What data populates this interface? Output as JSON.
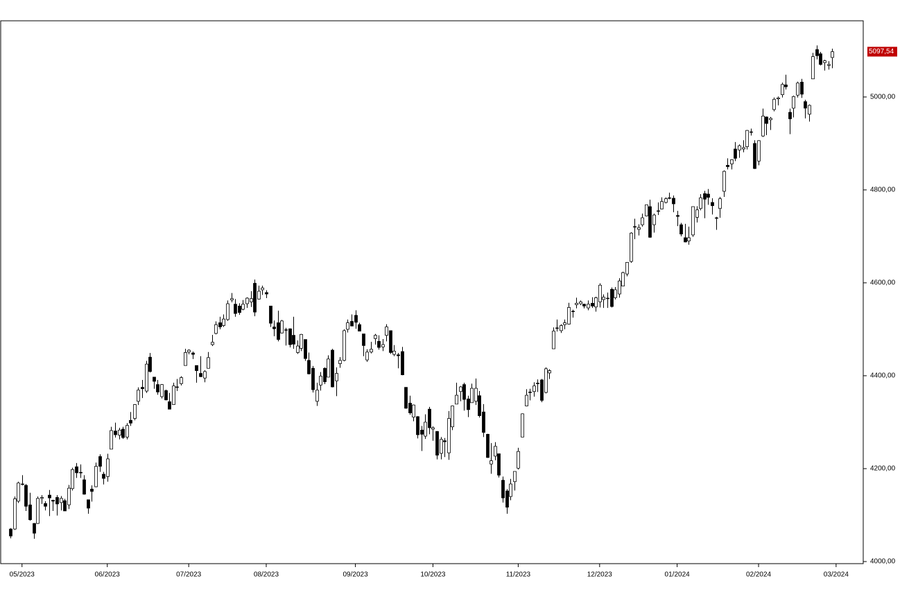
{
  "chart_data": {
    "type": "candlestick",
    "ohlc": [
      [
        4070,
        4072,
        4050,
        4055
      ],
      [
        4070,
        4140,
        4068,
        4135
      ],
      [
        4130,
        4172,
        4126,
        4169
      ],
      [
        4166,
        4186,
        4164,
        4167
      ],
      [
        4164,
        4167,
        4109,
        4119
      ],
      [
        4122,
        4148,
        4088,
        4090
      ],
      [
        4082,
        4083,
        4049,
        4061
      ],
      [
        4082,
        4140,
        4081,
        4136
      ],
      [
        4136,
        4143,
        4124,
        4138
      ],
      [
        4125,
        4130,
        4110,
        4119
      ],
      [
        4143,
        4154,
        4098,
        4137
      ],
      [
        4132,
        4133,
        4109,
        4130
      ],
      [
        4138,
        4143,
        4099,
        4124
      ],
      [
        4127,
        4141,
        4110,
        4136
      ],
      [
        4131,
        4135,
        4109,
        4109
      ],
      [
        4122,
        4165,
        4113,
        4158
      ],
      [
        4157,
        4202,
        4153,
        4198
      ],
      [
        4204,
        4212,
        4180,
        4191
      ],
      [
        4191,
        4209,
        4180,
        4192
      ],
      [
        4176,
        4186,
        4144,
        4145
      ],
      [
        4133,
        4133,
        4103,
        4115
      ],
      [
        4156,
        4164,
        4129,
        4151
      ],
      [
        4161,
        4213,
        4160,
        4205
      ],
      [
        4226,
        4231,
        4193,
        4205
      ],
      [
        4188,
        4193,
        4166,
        4179
      ],
      [
        4183,
        4232,
        4172,
        4221
      ],
      [
        4242,
        4290,
        4242,
        4282
      ],
      [
        4281,
        4299,
        4267,
        4273
      ],
      [
        4272,
        4288,
        4263,
        4283
      ],
      [
        4285,
        4290,
        4264,
        4267
      ],
      [
        4268,
        4298,
        4263,
        4293
      ],
      [
        4304,
        4322,
        4292,
        4298
      ],
      [
        4308,
        4339,
        4304,
        4338
      ],
      [
        4345,
        4375,
        4337,
        4369
      ],
      [
        4375,
        4391,
        4352,
        4372
      ],
      [
        4367,
        4432,
        4363,
        4425
      ],
      [
        4440,
        4449,
        4407,
        4409
      ],
      [
        4397,
        4397,
        4372,
        4388
      ],
      [
        4381,
        4391,
        4359,
        4365
      ],
      [
        4355,
        4382,
        4351,
        4381
      ],
      [
        4368,
        4370,
        4347,
        4348
      ],
      [
        4344,
        4363,
        4328,
        4328
      ],
      [
        4338,
        4385,
        4338,
        4378
      ],
      [
        4375,
        4393,
        4367,
        4376
      ],
      [
        4383,
        4399,
        4379,
        4396
      ],
      [
        4422,
        4458,
        4422,
        4450
      ],
      [
        4451,
        4457,
        4446,
        4455
      ],
      [
        4449,
        4452,
        4436,
        4446
      ],
      [
        4422,
        4422,
        4385,
        4411
      ],
      [
        4405,
        4442,
        4397,
        4398
      ],
      [
        4395,
        4412,
        4386,
        4409
      ],
      [
        4416,
        4451,
        4416,
        4439
      ],
      [
        4467,
        4488,
        4464,
        4472
      ],
      [
        4491,
        4517,
        4489,
        4510
      ],
      [
        4514,
        4527,
        4500,
        4505
      ],
      [
        4508,
        4532,
        4505,
        4522
      ],
      [
        4521,
        4562,
        4518,
        4555
      ],
      [
        4563,
        4578,
        4558,
        4566
      ],
      [
        4554,
        4565,
        4527,
        4534
      ],
      [
        4550,
        4556,
        4531,
        4536
      ],
      [
        4543,
        4563,
        4541,
        4554
      ],
      [
        4555,
        4569,
        4546,
        4567
      ],
      [
        4559,
        4582,
        4548,
        4566
      ],
      [
        4599,
        4607,
        4528,
        4537
      ],
      [
        4565,
        4594,
        4564,
        4582
      ],
      [
        4585,
        4594,
        4574,
        4589
      ],
      [
        4579,
        4584,
        4567,
        4576
      ],
      [
        4550,
        4550,
        4505,
        4513
      ],
      [
        4505,
        4519,
        4485,
        4501
      ],
      [
        4514,
        4540,
        4474,
        4478
      ],
      [
        4492,
        4520,
        4491,
        4518
      ],
      [
        4498,
        4503,
        4465,
        4499
      ],
      [
        4501,
        4502,
        4461,
        4467
      ],
      [
        4487,
        4527,
        4458,
        4468
      ],
      [
        4450,
        4476,
        4447,
        4464
      ],
      [
        4459,
        4490,
        4453,
        4489
      ],
      [
        4478,
        4478,
        4432,
        4437
      ],
      [
        4433,
        4450,
        4403,
        4404
      ],
      [
        4416,
        4421,
        4364,
        4370
      ],
      [
        4345,
        4385,
        4335,
        4369
      ],
      [
        4380,
        4408,
        4368,
        4399
      ],
      [
        4416,
        4418,
        4382,
        4387
      ],
      [
        4397,
        4444,
        4397,
        4436
      ],
      [
        4455,
        4458,
        4375,
        4376
      ],
      [
        4389,
        4418,
        4356,
        4405
      ],
      [
        4426,
        4440,
        4417,
        4433
      ],
      [
        4433,
        4500,
        4431,
        4497
      ],
      [
        4500,
        4521,
        4493,
        4514
      ],
      [
        4517,
        4532,
        4507,
        4507
      ],
      [
        4530,
        4541,
        4501,
        4515
      ],
      [
        4510,
        4514,
        4496,
        4496
      ],
      [
        4490,
        4490,
        4442,
        4465
      ],
      [
        4434,
        4457,
        4430,
        4451
      ],
      [
        4451,
        4473,
        4448,
        4457
      ],
      [
        4480,
        4490,
        4467,
        4487
      ],
      [
        4474,
        4487,
        4456,
        4461
      ],
      [
        4462,
        4479,
        4453,
        4467
      ],
      [
        4487,
        4511,
        4474,
        4505
      ],
      [
        4497,
        4497,
        4447,
        4450
      ],
      [
        4446,
        4466,
        4442,
        4453
      ],
      [
        4445,
        4449,
        4416,
        4443
      ],
      [
        4452,
        4462,
        4401,
        4402
      ],
      [
        4375,
        4375,
        4329,
        4330
      ],
      [
        4341,
        4357,
        4316,
        4320
      ],
      [
        4311,
        4338,
        4302,
        4337
      ],
      [
        4312,
        4313,
        4265,
        4273
      ],
      [
        4283,
        4292,
        4238,
        4274
      ],
      [
        4270,
        4317,
        4264,
        4300
      ],
      [
        4328,
        4333,
        4274,
        4288
      ],
      [
        4285,
        4291,
        4260,
        4288
      ],
      [
        4280,
        4281,
        4220,
        4229
      ],
      [
        4233,
        4268,
        4220,
        4263
      ],
      [
        4260,
        4266,
        4225,
        4258
      ],
      [
        4234,
        4324,
        4219,
        4308
      ],
      [
        4290,
        4336,
        4283,
        4335
      ],
      [
        4339,
        4385,
        4339,
        4358
      ],
      [
        4366,
        4378,
        4345,
        4376
      ],
      [
        4381,
        4385,
        4325,
        4349
      ],
      [
        4350,
        4357,
        4311,
        4327
      ],
      [
        4342,
        4383,
        4342,
        4373
      ],
      [
        4345,
        4394,
        4337,
        4373
      ],
      [
        4357,
        4367,
        4310,
        4314
      ],
      [
        4322,
        4339,
        4268,
        4278
      ],
      [
        4274,
        4275,
        4223,
        4224
      ],
      [
        4210,
        4255,
        4189,
        4217
      ],
      [
        4227,
        4257,
        4218,
        4248
      ],
      [
        4232,
        4232,
        4181,
        4186
      ],
      [
        4175,
        4183,
        4127,
        4137
      ],
      [
        4152,
        4156,
        4103,
        4117
      ],
      [
        4140,
        4178,
        4132,
        4167
      ],
      [
        4172,
        4194,
        4153,
        4194
      ],
      [
        4201,
        4245,
        4198,
        4237
      ],
      [
        4268,
        4319,
        4268,
        4318
      ],
      [
        4335,
        4371,
        4334,
        4358
      ],
      [
        4364,
        4372,
        4347,
        4365
      ],
      [
        4366,
        4386,
        4355,
        4378
      ],
      [
        4384,
        4392,
        4365,
        4383
      ],
      [
        4391,
        4393,
        4343,
        4347
      ],
      [
        4364,
        4418,
        4362,
        4415
      ],
      [
        4406,
        4414,
        4393,
        4411
      ],
      [
        4458,
        4504,
        4458,
        4496
      ],
      [
        4503,
        4521,
        4495,
        4502
      ],
      [
        4497,
        4511,
        4492,
        4508
      ],
      [
        4510,
        4521,
        4500,
        4514
      ],
      [
        4511,
        4557,
        4510,
        4547
      ],
      [
        4539,
        4542,
        4525,
        4538
      ],
      [
        4553,
        4568,
        4545,
        4556
      ],
      [
        4555,
        4562,
        4552,
        4559
      ],
      [
        4554,
        4555,
        4545,
        4550
      ],
      [
        4546,
        4562,
        4541,
        4554
      ],
      [
        4556,
        4569,
        4546,
        4550
      ],
      [
        4548,
        4570,
        4538,
        4568
      ],
      [
        4559,
        4599,
        4547,
        4595
      ],
      [
        4564,
        4575,
        4546,
        4569
      ],
      [
        4566,
        4579,
        4546,
        4567
      ],
      [
        4586,
        4590,
        4547,
        4549
      ],
      [
        4568,
        4591,
        4564,
        4585
      ],
      [
        4576,
        4610,
        4568,
        4604
      ],
      [
        4593,
        4624,
        4593,
        4622
      ],
      [
        4619,
        4644,
        4614,
        4644
      ],
      [
        4646,
        4709,
        4643,
        4707
      ],
      [
        4721,
        4738,
        4694,
        4720
      ],
      [
        4715,
        4726,
        4702,
        4719
      ],
      [
        4725,
        4749,
        4721,
        4740
      ],
      [
        4744,
        4768,
        4743,
        4768
      ],
      [
        4764,
        4779,
        4697,
        4698
      ],
      [
        4725,
        4749,
        4708,
        4746
      ],
      [
        4754,
        4773,
        4746,
        4755
      ],
      [
        4759,
        4784,
        4758,
        4775
      ],
      [
        4773,
        4784,
        4771,
        4781
      ],
      [
        4783,
        4794,
        4780,
        4783
      ],
      [
        4782,
        4788,
        4752,
        4770
      ],
      [
        4745,
        4755,
        4722,
        4743
      ],
      [
        4725,
        4729,
        4700,
        4705
      ],
      [
        4697,
        4727,
        4687,
        4688
      ],
      [
        4690,
        4721,
        4682,
        4697
      ],
      [
        4703,
        4764,
        4699,
        4764
      ],
      [
        4741,
        4765,
        4730,
        4757
      ],
      [
        4760,
        4791,
        4756,
        4783
      ],
      [
        4792,
        4798,
        4739,
        4780
      ],
      [
        4791,
        4802,
        4768,
        4784
      ],
      [
        4773,
        4782,
        4747,
        4766
      ],
      [
        4740,
        4742,
        4714,
        4739
      ],
      [
        4760,
        4785,
        4740,
        4781
      ],
      [
        4797,
        4842,
        4785,
        4840
      ],
      [
        4853,
        4868,
        4844,
        4850
      ],
      [
        4856,
        4866,
        4844,
        4865
      ],
      [
        4888,
        4903,
        4862,
        4868
      ],
      [
        4886,
        4898,
        4869,
        4895
      ],
      [
        4888,
        4907,
        4881,
        4891
      ],
      [
        4893,
        4929,
        4887,
        4928
      ],
      [
        4925,
        4932,
        4917,
        4925
      ],
      [
        4900,
        4907,
        4845,
        4846
      ],
      [
        4862,
        4907,
        4853,
        4906
      ],
      [
        4916,
        4975,
        4914,
        4959
      ],
      [
        4957,
        4958,
        4918,
        4943
      ],
      [
        4951,
        4957,
        4929,
        4954
      ],
      [
        4973,
        4999,
        4969,
        4995
      ],
      [
        4996,
        5001,
        4982,
        4998
      ],
      [
        5005,
        5031,
        4999,
        5027
      ],
      [
        5026,
        5048,
        5016,
        5022
      ],
      [
        4967,
        4975,
        4920,
        4953
      ],
      [
        4976,
        5003,
        4956,
        5001
      ],
      [
        5004,
        5033,
        4999,
        5030
      ],
      [
        5032,
        5039,
        4998,
        5006
      ],
      [
        4990,
        4994,
        4954,
        4976
      ],
      [
        4963,
        4984,
        4947,
        4982
      ],
      [
        5039,
        5095,
        5039,
        5087
      ],
      [
        5102,
        5111,
        5081,
        5089
      ],
      [
        5093,
        5097,
        5068,
        5070
      ],
      [
        5074,
        5080,
        5057,
        5078
      ],
      [
        5068,
        5077,
        5059,
        5070
      ],
      [
        5085,
        5104,
        5062,
        5097.54
      ]
    ],
    "up_color": "#ffffff",
    "down_color": "#000000",
    "xlim": [
      -2.5,
      220
    ],
    "xticks": [
      {
        "value": 3,
        "label": "05/2023"
      },
      {
        "value": 25,
        "label": "06/2023"
      },
      {
        "value": 46,
        "label": "07/2023"
      },
      {
        "value": 66,
        "label": "08/2023"
      },
      {
        "value": 89,
        "label": "09/2023"
      },
      {
        "value": 109,
        "label": "10/2023"
      },
      {
        "value": 131,
        "label": "11/2023"
      },
      {
        "value": 152,
        "label": "12/2023"
      },
      {
        "value": 172,
        "label": "01/2024"
      },
      {
        "value": 193,
        "label": "02/2024"
      },
      {
        "value": 213,
        "label": "03/2024"
      }
    ],
    "ylim": [
      3995.5,
      5164
    ],
    "yticks": [
      {
        "value": 4000,
        "label": "4000,00"
      },
      {
        "value": 4200,
        "label": "4200,00"
      },
      {
        "value": 4400,
        "label": "4400,00"
      },
      {
        "value": 4600,
        "label": "4600,00"
      },
      {
        "value": 4800,
        "label": "4800,00"
      },
      {
        "value": 5000,
        "label": "5000,00"
      }
    ],
    "last_price": {
      "value": 5097.54,
      "label": "5097,54"
    },
    "last_price_color": "#c00000"
  }
}
